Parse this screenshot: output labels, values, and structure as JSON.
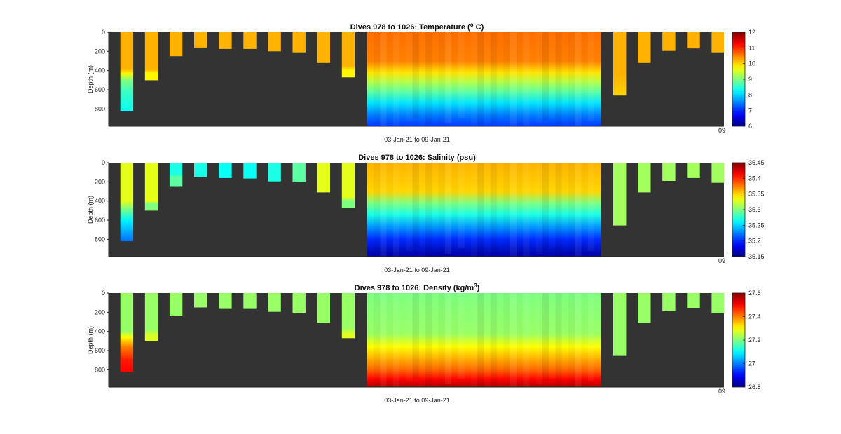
{
  "colors": {
    "background": "#333333",
    "figure": "#ffffff",
    "colormap": "jet"
  },
  "chart_data": [
    {
      "type": "heatmap",
      "title_pre": "Dives 978 to 1026: Temperature (",
      "title_sup": "o",
      "title_post": " C)",
      "ylabel": "Depth (m)",
      "xlabel": "03-Jan-21 to 09-Jan-21",
      "x_corner_tick": "09",
      "ylim": [
        0,
        980
      ],
      "yticks": [
        "0",
        "200",
        "400",
        "600",
        "800"
      ],
      "clim": [
        6,
        12
      ],
      "cticks": [
        "6",
        "7",
        "8",
        "9",
        "10",
        "11",
        "12"
      ],
      "columns": [
        {
          "x0": 0.019,
          "x1": 0.04,
          "depth": 820,
          "stops": [
            [
              0,
              10.2
            ],
            [
              380,
              10.2
            ],
            [
              430,
              9.8
            ],
            [
              500,
              9.0
            ],
            [
              620,
              8.6
            ],
            [
              820,
              8.3
            ]
          ]
        },
        {
          "x0": 0.059,
          "x1": 0.08,
          "depth": 500,
          "stops": [
            [
              0,
              10.2
            ],
            [
              390,
              10.2
            ],
            [
              420,
              9.8
            ],
            [
              500,
              9.8
            ]
          ]
        },
        {
          "x0": 0.099,
          "x1": 0.12,
          "depth": 250,
          "stops": [
            [
              0,
              10.2
            ],
            [
              250,
              10.2
            ]
          ]
        },
        {
          "x0": 0.139,
          "x1": 0.16,
          "depth": 160,
          "stops": [
            [
              0,
              10.2
            ],
            [
              160,
              10.2
            ]
          ]
        },
        {
          "x0": 0.179,
          "x1": 0.2,
          "depth": 175,
          "stops": [
            [
              0,
              10.2
            ],
            [
              175,
              10.2
            ]
          ]
        },
        {
          "x0": 0.219,
          "x1": 0.24,
          "depth": 175,
          "stops": [
            [
              0,
              10.2
            ],
            [
              175,
              10.2
            ]
          ]
        },
        {
          "x0": 0.259,
          "x1": 0.28,
          "depth": 200,
          "stops": [
            [
              0,
              10.2
            ],
            [
              200,
              10.2
            ]
          ]
        },
        {
          "x0": 0.299,
          "x1": 0.32,
          "depth": 210,
          "stops": [
            [
              0,
              10.2
            ],
            [
              210,
              10.2
            ]
          ]
        },
        {
          "x0": 0.339,
          "x1": 0.36,
          "depth": 320,
          "stops": [
            [
              0,
              10.2
            ],
            [
              320,
              10.2
            ]
          ]
        },
        {
          "x0": 0.379,
          "x1": 0.4,
          "depth": 470,
          "stops": [
            [
              0,
              10.2
            ],
            [
              350,
              10.2
            ],
            [
              400,
              9.8
            ],
            [
              470,
              9.8
            ]
          ]
        },
        {
          "x0": 0.42,
          "x1": 0.8,
          "depth": 975,
          "stops": [
            [
              0,
              10.6
            ],
            [
              300,
              10.5
            ],
            [
              420,
              9.9
            ],
            [
              520,
              9.3
            ],
            [
              620,
              8.8
            ],
            [
              740,
              8.1
            ],
            [
              860,
              7.5
            ],
            [
              975,
              7.1
            ]
          ]
        },
        {
          "x0": 0.82,
          "x1": 0.841,
          "depth": 660,
          "stops": [
            [
              0,
              10.2
            ],
            [
              450,
              10.2
            ],
            [
              660,
              10.0
            ]
          ]
        },
        {
          "x0": 0.86,
          "x1": 0.881,
          "depth": 320,
          "stops": [
            [
              0,
              10.2
            ],
            [
              320,
              10.2
            ]
          ]
        },
        {
          "x0": 0.9,
          "x1": 0.921,
          "depth": 195,
          "stops": [
            [
              0,
              10.2
            ],
            [
              195,
              10.2
            ]
          ]
        },
        {
          "x0": 0.94,
          "x1": 0.961,
          "depth": 170,
          "stops": [
            [
              0,
              10.2
            ],
            [
              170,
              10.2
            ]
          ]
        },
        {
          "x0": 0.98,
          "x1": 1.0,
          "depth": 210,
          "stops": [
            [
              0,
              10.2
            ],
            [
              210,
              10.2
            ]
          ]
        }
      ]
    },
    {
      "type": "heatmap",
      "title_pre": "Dives 978 to 1026: Salinity (psu)",
      "title_sup": "",
      "title_post": "",
      "ylabel": "Depth (m)",
      "xlabel": "03-Jan-21 to 09-Jan-21",
      "x_corner_tick": "09",
      "ylim": [
        0,
        980
      ],
      "yticks": [
        "0",
        "200",
        "400",
        "600",
        "800"
      ],
      "clim": [
        35.15,
        35.45
      ],
      "cticks": [
        "35.15",
        "35.2",
        "35.25",
        "35.3",
        "35.35",
        "35.4",
        "35.45"
      ],
      "columns": [
        {
          "x0": 0.019,
          "x1": 0.04,
          "depth": 820,
          "stops": [
            [
              0,
              35.33
            ],
            [
              400,
              35.33
            ],
            [
              480,
              35.3
            ],
            [
              600,
              35.26
            ],
            [
              820,
              35.22
            ]
          ]
        },
        {
          "x0": 0.059,
          "x1": 0.08,
          "depth": 500,
          "stops": [
            [
              0,
              35.33
            ],
            [
              400,
              35.33
            ],
            [
              430,
              35.3
            ],
            [
              500,
              35.3
            ]
          ]
        },
        {
          "x0": 0.099,
          "x1": 0.12,
          "depth": 245,
          "stops": [
            [
              0,
              35.27
            ],
            [
              120,
              35.27
            ],
            [
              150,
              35.29
            ],
            [
              245,
              35.29
            ]
          ]
        },
        {
          "x0": 0.139,
          "x1": 0.16,
          "depth": 150,
          "stops": [
            [
              0,
              35.27
            ],
            [
              150,
              35.27
            ]
          ]
        },
        {
          "x0": 0.179,
          "x1": 0.2,
          "depth": 160,
          "stops": [
            [
              0,
              35.265
            ],
            [
              160,
              35.265
            ]
          ]
        },
        {
          "x0": 0.219,
          "x1": 0.24,
          "depth": 165,
          "stops": [
            [
              0,
              35.265
            ],
            [
              165,
              35.265
            ]
          ]
        },
        {
          "x0": 0.259,
          "x1": 0.28,
          "depth": 195,
          "stops": [
            [
              0,
              35.27
            ],
            [
              195,
              35.27
            ]
          ]
        },
        {
          "x0": 0.299,
          "x1": 0.32,
          "depth": 205,
          "stops": [
            [
              0,
              35.29
            ],
            [
              205,
              35.29
            ]
          ]
        },
        {
          "x0": 0.339,
          "x1": 0.36,
          "depth": 310,
          "stops": [
            [
              0,
              35.33
            ],
            [
              310,
              35.33
            ]
          ]
        },
        {
          "x0": 0.379,
          "x1": 0.4,
          "depth": 470,
          "stops": [
            [
              0,
              35.33
            ],
            [
              360,
              35.33
            ],
            [
              400,
              35.3
            ],
            [
              470,
              35.3
            ]
          ]
        },
        {
          "x0": 0.42,
          "x1": 0.8,
          "depth": 975,
          "stops": [
            [
              0,
              35.36
            ],
            [
              300,
              35.35
            ],
            [
              420,
              35.3
            ],
            [
              540,
              35.27
            ],
            [
              680,
              35.23
            ],
            [
              800,
              35.2
            ],
            [
              975,
              35.16
            ]
          ]
        },
        {
          "x0": 0.82,
          "x1": 0.841,
          "depth": 655,
          "stops": [
            [
              0,
              35.31
            ],
            [
              655,
              35.31
            ]
          ]
        },
        {
          "x0": 0.86,
          "x1": 0.881,
          "depth": 310,
          "stops": [
            [
              0,
              35.31
            ],
            [
              310,
              35.31
            ]
          ]
        },
        {
          "x0": 0.9,
          "x1": 0.921,
          "depth": 190,
          "stops": [
            [
              0,
              35.31
            ],
            [
              190,
              35.31
            ]
          ]
        },
        {
          "x0": 0.94,
          "x1": 0.961,
          "depth": 160,
          "stops": [
            [
              0,
              35.31
            ],
            [
              160,
              35.31
            ]
          ]
        },
        {
          "x0": 0.98,
          "x1": 1.0,
          "depth": 210,
          "stops": [
            [
              0,
              35.31
            ],
            [
              210,
              35.31
            ]
          ]
        }
      ]
    },
    {
      "type": "heatmap",
      "title_pre": "Dives 978 to 1026: Density (kg/m",
      "title_sup": "3",
      "title_post": ")",
      "ylabel": "Depth (m)",
      "xlabel": "03-Jan-21 to 09-Jan-21",
      "x_corner_tick": "09",
      "ylim": [
        0,
        980
      ],
      "yticks": [
        "0",
        "200",
        "400",
        "600",
        "800"
      ],
      "clim": [
        26.8,
        27.6
      ],
      "cticks": [
        "26.8",
        "27",
        "27.2",
        "27.4",
        "27.6"
      ],
      "columns": [
        {
          "x0": 0.019,
          "x1": 0.04,
          "depth": 820,
          "stops": [
            [
              0,
              27.22
            ],
            [
              400,
              27.22
            ],
            [
              460,
              27.3
            ],
            [
              560,
              27.4
            ],
            [
              700,
              27.48
            ],
            [
              820,
              27.5
            ]
          ]
        },
        {
          "x0": 0.059,
          "x1": 0.08,
          "depth": 500,
          "stops": [
            [
              0,
              27.22
            ],
            [
              380,
              27.22
            ],
            [
              440,
              27.27
            ],
            [
              500,
              27.28
            ]
          ]
        },
        {
          "x0": 0.099,
          "x1": 0.12,
          "depth": 240,
          "stops": [
            [
              0,
              27.22
            ],
            [
              240,
              27.22
            ]
          ]
        },
        {
          "x0": 0.139,
          "x1": 0.16,
          "depth": 150,
          "stops": [
            [
              0,
              27.22
            ],
            [
              150,
              27.22
            ]
          ]
        },
        {
          "x0": 0.179,
          "x1": 0.2,
          "depth": 165,
          "stops": [
            [
              0,
              27.22
            ],
            [
              165,
              27.22
            ]
          ]
        },
        {
          "x0": 0.219,
          "x1": 0.24,
          "depth": 165,
          "stops": [
            [
              0,
              27.22
            ],
            [
              165,
              27.22
            ]
          ]
        },
        {
          "x0": 0.259,
          "x1": 0.28,
          "depth": 195,
          "stops": [
            [
              0,
              27.22
            ],
            [
              195,
              27.22
            ]
          ]
        },
        {
          "x0": 0.299,
          "x1": 0.32,
          "depth": 205,
          "stops": [
            [
              0,
              27.22
            ],
            [
              205,
              27.22
            ]
          ]
        },
        {
          "x0": 0.339,
          "x1": 0.36,
          "depth": 310,
          "stops": [
            [
              0,
              27.22
            ],
            [
              310,
              27.22
            ]
          ]
        },
        {
          "x0": 0.379,
          "x1": 0.4,
          "depth": 470,
          "stops": [
            [
              0,
              27.22
            ],
            [
              360,
              27.22
            ],
            [
              420,
              27.27
            ],
            [
              470,
              27.28
            ]
          ]
        },
        {
          "x0": 0.42,
          "x1": 0.8,
          "depth": 975,
          "stops": [
            [
              0,
              27.2
            ],
            [
              420,
              27.22
            ],
            [
              560,
              27.3
            ],
            [
              680,
              27.36
            ],
            [
              800,
              27.42
            ],
            [
              900,
              27.5
            ],
            [
              975,
              27.56
            ]
          ]
        },
        {
          "x0": 0.82,
          "x1": 0.841,
          "depth": 655,
          "stops": [
            [
              0,
              27.22
            ],
            [
              655,
              27.22
            ]
          ]
        },
        {
          "x0": 0.86,
          "x1": 0.881,
          "depth": 310,
          "stops": [
            [
              0,
              27.22
            ],
            [
              310,
              27.22
            ]
          ]
        },
        {
          "x0": 0.9,
          "x1": 0.921,
          "depth": 190,
          "stops": [
            [
              0,
              27.22
            ],
            [
              190,
              27.22
            ]
          ]
        },
        {
          "x0": 0.94,
          "x1": 0.961,
          "depth": 160,
          "stops": [
            [
              0,
              27.22
            ],
            [
              160,
              27.22
            ]
          ]
        },
        {
          "x0": 0.98,
          "x1": 1.0,
          "depth": 210,
          "stops": [
            [
              0,
              27.22
            ],
            [
              210,
              27.22
            ]
          ]
        }
      ]
    }
  ]
}
